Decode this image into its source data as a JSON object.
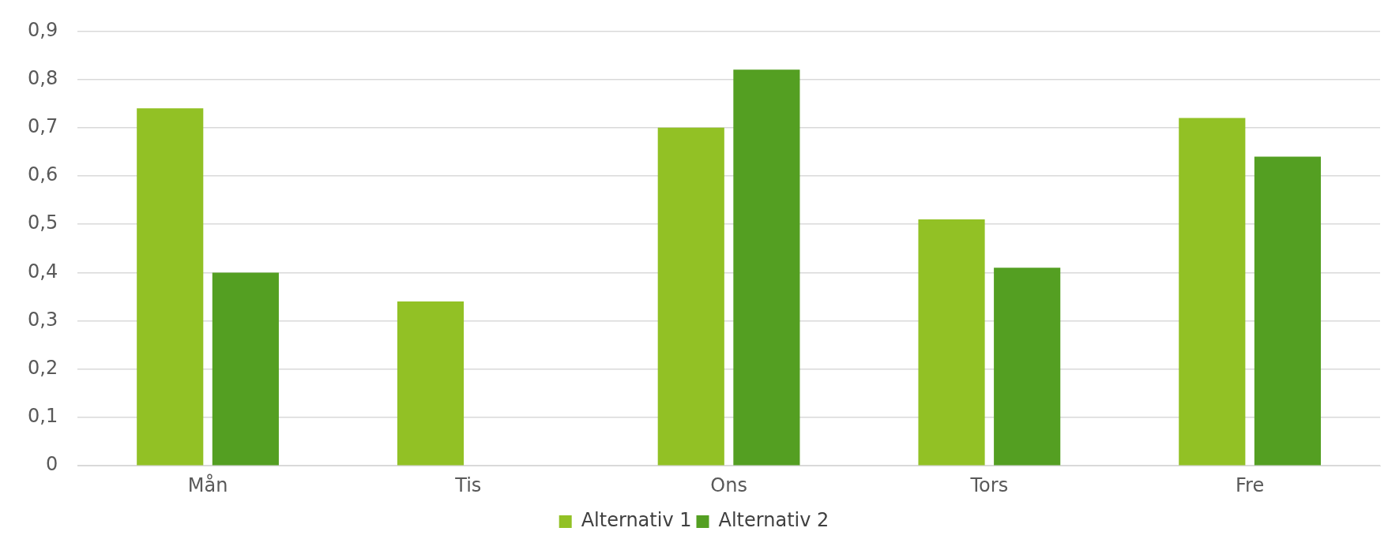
{
  "chart_data": {
    "type": "bar",
    "categories": [
      "Mån",
      "Tis",
      "Ons",
      "Tors",
      "Fre"
    ],
    "series": [
      {
        "name": "Alternativ 1",
        "color": "#92c125",
        "values": [
          0.74,
          0.34,
          0.7,
          0.51,
          0.72
        ]
      },
      {
        "name": "Alternativ 2",
        "color": "#549f22",
        "values": [
          0.4,
          null,
          0.82,
          0.41,
          0.64
        ]
      }
    ],
    "ylim": [
      0,
      0.9
    ],
    "yticks": [
      0,
      {
        "value": 0.1,
        "label": "0,1"
      },
      {
        "value": 0.2,
        "label": "0,2"
      },
      {
        "value": 0.3,
        "label": "0,3"
      },
      {
        "value": 0.4,
        "label": "0,4"
      },
      {
        "value": 0.5,
        "label": "0,5"
      },
      {
        "value": 0.6,
        "label": "0,6"
      },
      {
        "value": 0.7,
        "label": "0,7"
      },
      {
        "value": 0.8,
        "label": "0,8"
      },
      {
        "value": 0.9,
        "label": "0,9"
      }
    ],
    "grid": "y",
    "legend": "bottom"
  }
}
